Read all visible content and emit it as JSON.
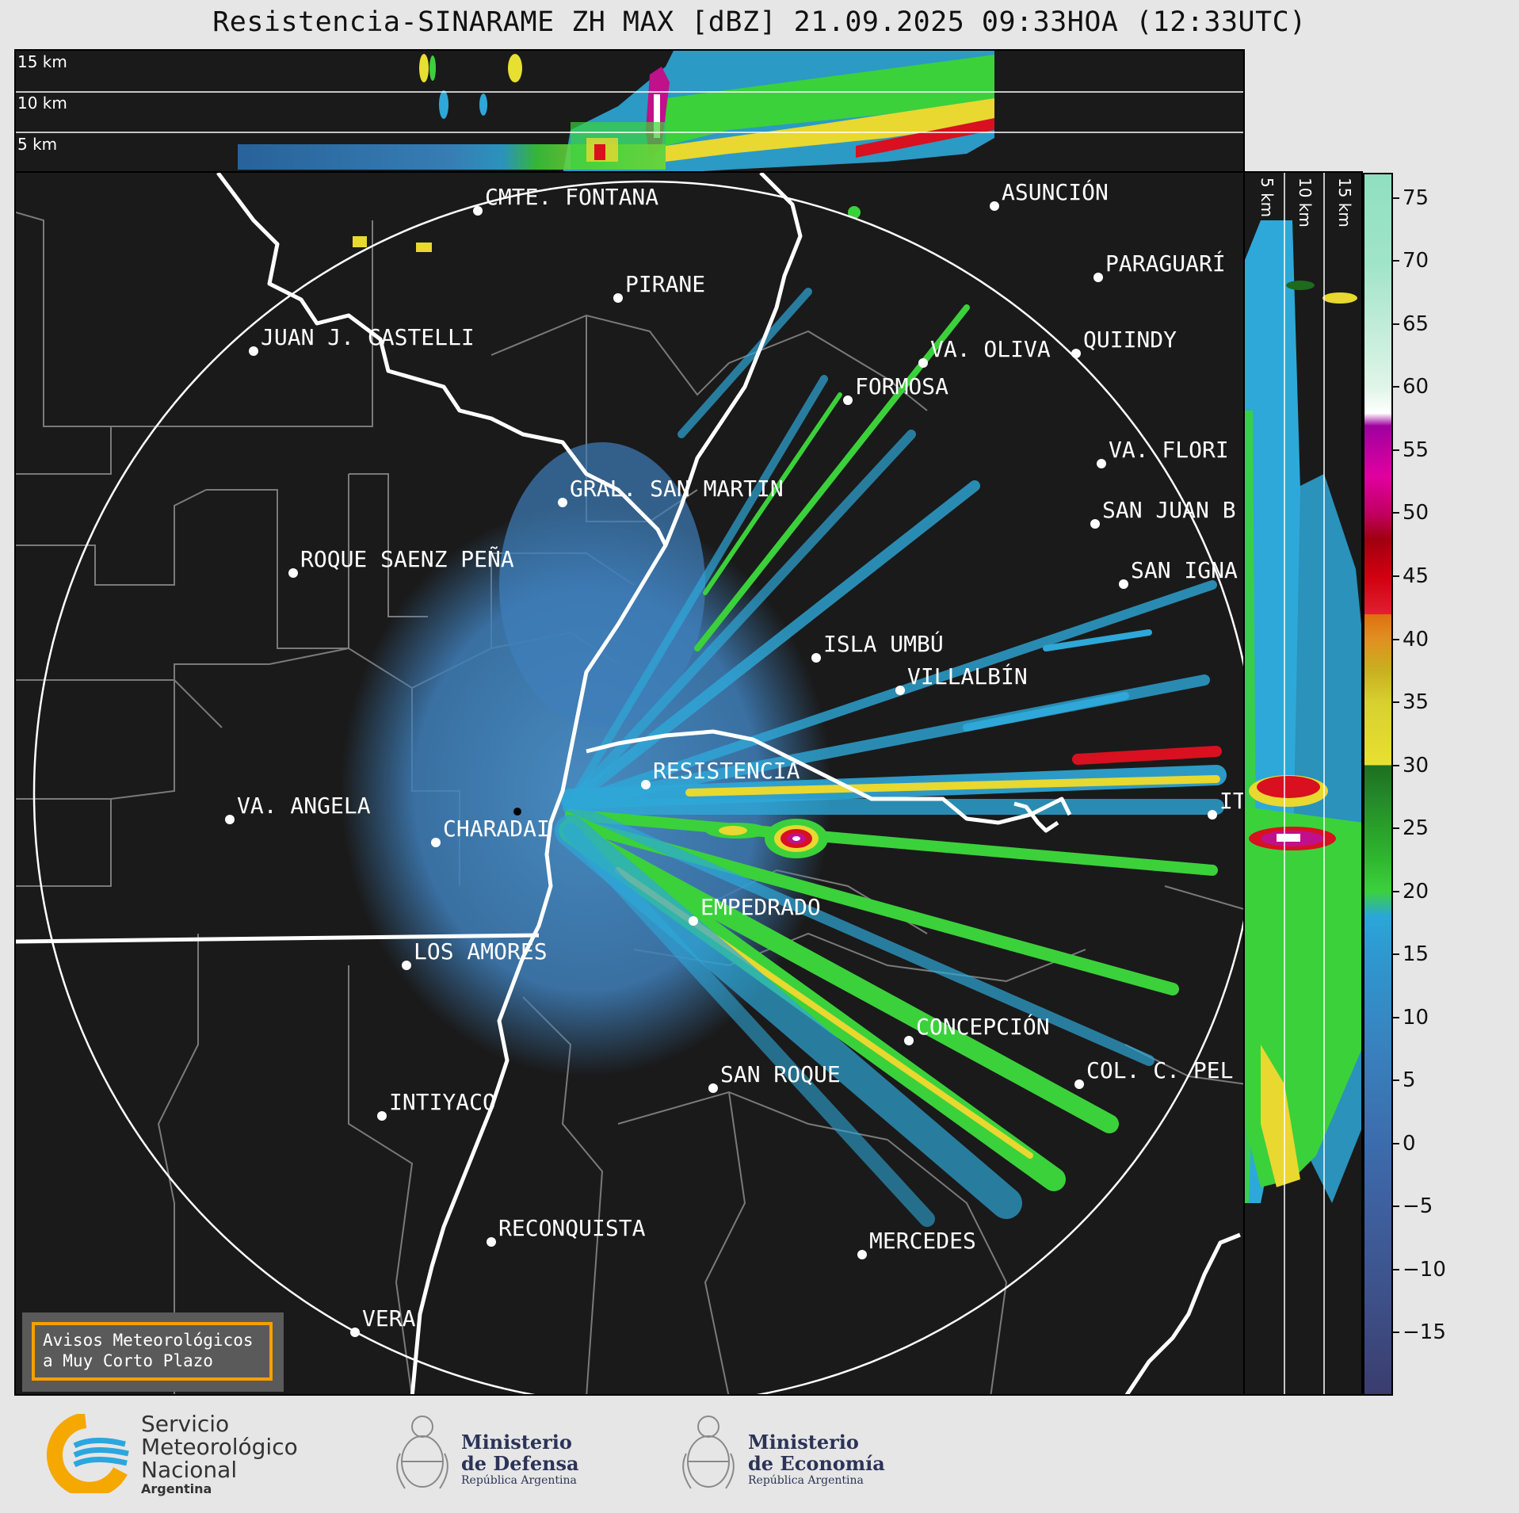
{
  "title": "Resistencia-SINARAME ZH MAX [dBZ] 21.09.2025 09:33HOA (12:33UTC)",
  "top_panel": {
    "height_labels": [
      "15 km",
      "10 km",
      "5 km"
    ]
  },
  "side_panel": {
    "height_labels": [
      "5 km",
      "10 km",
      "15 km"
    ]
  },
  "colorbar": {
    "unit": "dBZ",
    "ticks": [
      "75",
      "70",
      "65",
      "60",
      "55",
      "50",
      "45",
      "40",
      "35",
      "30",
      "25",
      "20",
      "15",
      "10",
      "5",
      "0",
      "−5",
      "−10",
      "−15"
    ],
    "range": [
      -20,
      77
    ]
  },
  "cities": [
    {
      "name": "CMTE. FONTANA"
    },
    {
      "name": "ASUNCIÓN"
    },
    {
      "name": "PARAGUARÍ"
    },
    {
      "name": "PIRANE"
    },
    {
      "name": "JUAN J. CASTELLI"
    },
    {
      "name": "VA. OLIVA"
    },
    {
      "name": "QUIINDY"
    },
    {
      "name": "FORMOSA"
    },
    {
      "name": "VA. FLORI"
    },
    {
      "name": "GRAL. SAN MARTIN"
    },
    {
      "name": "SAN JUAN B"
    },
    {
      "name": "ROQUE SAENZ PEÑA"
    },
    {
      "name": "SAN IGNA"
    },
    {
      "name": "ISLA UMBÚ"
    },
    {
      "name": "VILLALBÍN"
    },
    {
      "name": "RESISTENCIA"
    },
    {
      "name": "VA. ANGELA"
    },
    {
      "name": "CHARADAI"
    },
    {
      "name": "IT"
    },
    {
      "name": "EMPEDRADO"
    },
    {
      "name": "LOS AMORES"
    },
    {
      "name": "CONCEPCIÓN"
    },
    {
      "name": "SAN ROQUE"
    },
    {
      "name": "COL. C. PEL"
    },
    {
      "name": "INTIYACO"
    },
    {
      "name": "RECONQUISTA"
    },
    {
      "name": "MERCEDES"
    },
    {
      "name": "VERA"
    }
  ],
  "alert": {
    "line1": "Avisos Meteorológicos",
    "line2": "a Muy Corto Plazo"
  },
  "footer": {
    "smn": [
      "Servicio",
      "Meteorológico",
      "Nacional"
    ],
    "smn_country": "Argentina",
    "defensa": [
      "Ministerio",
      "de Defensa"
    ],
    "defensa_sub": "República Argentina",
    "economia": [
      "Ministerio",
      "de Economía"
    ],
    "economia_sub": "República Argentina"
  },
  "colors": {
    "background": "#1a1a1a",
    "accent_alert": "#f5a000",
    "smn_blue": "#2aa7de",
    "smn_yellow": "#f5a800"
  }
}
